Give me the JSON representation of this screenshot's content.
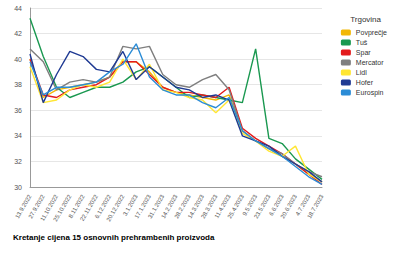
{
  "chart_data": {
    "type": "line",
    "title": "Kretanje cijena 15 osnovnih prehrambenih proizvoda",
    "legend_title": "Trgovina",
    "categories": [
      "13.9.2022",
      "27.9.2022",
      "11.10.2022",
      "25.10.2022",
      "8.11.2022",
      "22.11.2022",
      "6.12.2022",
      "20.12.2022",
      "3.1.2023",
      "17.1.2023",
      "31.1.2023",
      "14.2.2023",
      "28.2.2023",
      "14.3.2023",
      "28.3.2023",
      "11.4.2023",
      "25.4.2023",
      "9.5.2023",
      "23.5.2023",
      "6.6.2023",
      "20.6.2023",
      "4.7.2023",
      "18.7.2023"
    ],
    "series": [
      {
        "name": "Povprečje",
        "color": "#f2b705",
        "values": [
          40.0,
          37.0,
          37.6,
          37.8,
          38.0,
          38.2,
          38.6,
          39.8,
          39.8,
          39.0,
          37.8,
          37.4,
          37.2,
          37.0,
          36.8,
          37.2,
          34.4,
          33.6,
          33.0,
          32.4,
          31.8,
          31.0,
          30.4
        ]
      },
      {
        "name": "Tuš",
        "color": "#1a9850",
        "values": [
          43.2,
          40.2,
          37.8,
          37.0,
          37.4,
          37.8,
          37.8,
          38.2,
          39.0,
          39.4,
          38.6,
          37.8,
          37.0,
          37.2,
          37.0,
          36.8,
          36.6,
          40.8,
          33.8,
          33.4,
          32.2,
          31.4,
          30.6
        ]
      },
      {
        "name": "Spar",
        "color": "#e31a1c",
        "values": [
          40.0,
          37.2,
          37.0,
          37.6,
          37.8,
          38.0,
          38.6,
          39.8,
          39.8,
          38.8,
          37.8,
          37.4,
          37.4,
          37.2,
          37.0,
          37.8,
          34.6,
          33.8,
          33.2,
          32.6,
          31.8,
          31.0,
          30.2
        ]
      },
      {
        "name": "Mercator",
        "color": "#7f7f7f",
        "values": [
          40.8,
          39.8,
          37.6,
          38.2,
          38.4,
          38.2,
          38.6,
          41.0,
          40.8,
          41.0,
          38.8,
          38.0,
          37.8,
          38.4,
          38.8,
          37.6,
          34.4,
          33.6,
          33.0,
          32.6,
          31.8,
          31.2,
          30.8
        ]
      },
      {
        "name": "Lidl",
        "color": "#ffe633",
        "values": [
          39.4,
          36.6,
          36.8,
          37.6,
          38.0,
          37.8,
          38.2,
          40.0,
          38.4,
          39.6,
          37.6,
          37.4,
          37.0,
          36.8,
          35.8,
          36.8,
          34.2,
          33.6,
          32.8,
          32.4,
          33.2,
          31.0,
          30.4
        ]
      },
      {
        "name": "Hofer",
        "color": "#1f3a93",
        "values": [
          40.4,
          36.6,
          38.8,
          40.6,
          40.2,
          39.2,
          39.0,
          40.6,
          38.4,
          39.4,
          38.6,
          37.8,
          37.6,
          37.0,
          37.2,
          36.8,
          34.0,
          33.6,
          33.2,
          32.4,
          31.8,
          31.2,
          30.4
        ]
      },
      {
        "name": "Eurospin",
        "color": "#2b8cd6",
        "values": [
          39.8,
          37.2,
          37.8,
          37.8,
          38.0,
          38.2,
          39.0,
          39.6,
          41.2,
          38.6,
          37.6,
          37.2,
          37.2,
          36.6,
          36.2,
          37.0,
          34.4,
          33.6,
          33.0,
          32.4,
          31.6,
          30.8,
          30.2
        ]
      }
    ],
    "ylim": [
      30,
      44
    ],
    "yticks": [
      30,
      32,
      34,
      36,
      38,
      40,
      42,
      44
    ],
    "grid": true,
    "legend": "right"
  }
}
